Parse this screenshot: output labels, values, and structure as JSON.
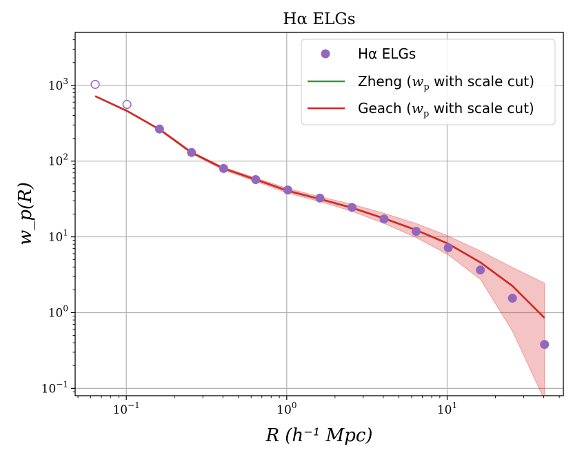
{
  "chart_data": {
    "type": "line",
    "title": "Hα ELGs",
    "xlabel": "R (h⁻¹ Mpc)",
    "ylabel": "w_p(R)",
    "xscale": "log",
    "yscale": "log",
    "xlim": [
      0.048,
      53
    ],
    "ylim": [
      0.08,
      5000
    ],
    "grid": true,
    "legend_position": "top-right",
    "x_ticks": [
      {
        "value": 0.1,
        "base": "10",
        "exp": "−1"
      },
      {
        "value": 1,
        "base": "10",
        "exp": "0"
      },
      {
        "value": 10,
        "base": "10",
        "exp": "1"
      }
    ],
    "y_ticks": [
      {
        "value": 0.1,
        "base": "10",
        "exp": "−1"
      },
      {
        "value": 1,
        "base": "10",
        "exp": "0"
      },
      {
        "value": 10,
        "base": "10",
        "exp": "1"
      },
      {
        "value": 100,
        "base": "10",
        "exp": "2"
      },
      {
        "value": 1000,
        "base": "10",
        "exp": "3"
      }
    ],
    "data_points": {
      "name": "Hα ELGs",
      "color": "#9467bd",
      "open_x": [
        0.064,
        0.101
      ],
      "open_y": [
        1030,
        560
      ],
      "filled_x": [
        0.161,
        0.255,
        0.404,
        0.641,
        1.016,
        1.61,
        2.553,
        4.046,
        6.413,
        10.164,
        16.109,
        25.531,
        40.464
      ],
      "filled_y": [
        265,
        130,
        80,
        57,
        41.5,
        32.5,
        24.5,
        17.2,
        11.8,
        7.2,
        3.65,
        1.55,
        0.38
      ]
    },
    "series": [
      {
        "name": "Zheng",
        "label_suffix": "with scale cut)",
        "color": "#2ca02c",
        "x": [
          0.064,
          0.101,
          0.161,
          0.255,
          0.404,
          0.641,
          1.016,
          1.61,
          2.553,
          4.046,
          6.413,
          10.164,
          16.109,
          25.531,
          40.464
        ],
        "y": [
          720,
          460,
          262,
          130,
          80,
          57,
          40.5,
          31.5,
          24.2,
          17.5,
          12.3,
          8.1,
          4.6,
          2.25,
          0.85
        ]
      },
      {
        "name": "Geach",
        "label_suffix": "with scale cut)",
        "color": "#d62728",
        "x": [
          0.064,
          0.101,
          0.161,
          0.255,
          0.404,
          0.641,
          1.016,
          1.61,
          2.553,
          4.046,
          6.413,
          10.164,
          16.109,
          25.531,
          40.464
        ],
        "y": [
          720,
          460,
          262,
          130,
          80,
          57,
          40.5,
          31.5,
          24.2,
          17.5,
          12.3,
          8.1,
          4.6,
          2.25,
          0.85
        ],
        "band_x": [
          0.161,
          0.255,
          0.404,
          0.641,
          1.016,
          1.61,
          2.553,
          4.046,
          6.413,
          10.164,
          16.109,
          25.531,
          40.464
        ],
        "band_upper": [
          272,
          134,
          83,
          60,
          43.5,
          34,
          27,
          20.5,
          15,
          10.3,
          6.5,
          3.95,
          2.45
        ],
        "band_lower": [
          255,
          126,
          76,
          54,
          37.8,
          29.2,
          21.8,
          15,
          9.8,
          5.8,
          2.75,
          0.57,
          0.07
        ]
      }
    ]
  }
}
